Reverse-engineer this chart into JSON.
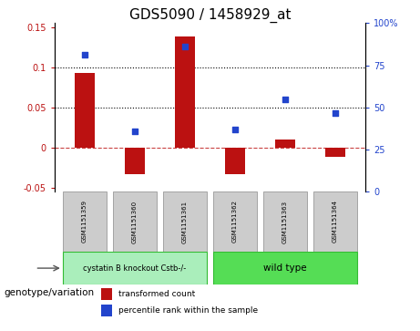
{
  "title": "GDS5090 / 1458929_at",
  "categories": [
    "GSM1151359",
    "GSM1151360",
    "GSM1151361",
    "GSM1151362",
    "GSM1151363",
    "GSM1151364"
  ],
  "bar_values": [
    0.093,
    -0.033,
    0.138,
    -0.033,
    0.01,
    -0.012
  ],
  "scatter_values": [
    0.116,
    0.02,
    0.126,
    0.022,
    0.06,
    0.043
  ],
  "bar_color": "#bb1111",
  "scatter_color": "#2244cc",
  "ylim_left": [
    -0.055,
    0.155
  ],
  "yticks_left": [
    -0.05,
    0.0,
    0.05,
    0.1,
    0.15
  ],
  "ytick_labels_left": [
    "-0.05",
    "0",
    "0.05",
    "0.1",
    "0.15"
  ],
  "yticks_right_pct": [
    0,
    25,
    50,
    75,
    100
  ],
  "ytick_labels_right": [
    "0",
    "25",
    "50",
    "75",
    "100%"
  ],
  "hlines": [
    0.1,
    0.05
  ],
  "zero_line": 0.0,
  "group1_label": "cystatin B knockout Cstb-/-",
  "group2_label": "wild type",
  "group1_color": "#aaeebb",
  "group2_color": "#55dd55",
  "group1_indices": [
    0,
    1,
    2
  ],
  "group2_indices": [
    3,
    4,
    5
  ],
  "genotype_label": "genotype/variation",
  "legend_bar_label": "transformed count",
  "legend_scatter_label": "percentile rank within the sample",
  "bar_width": 0.4,
  "title_fontsize": 11,
  "tick_fontsize": 7,
  "label_fontsize": 7.5
}
